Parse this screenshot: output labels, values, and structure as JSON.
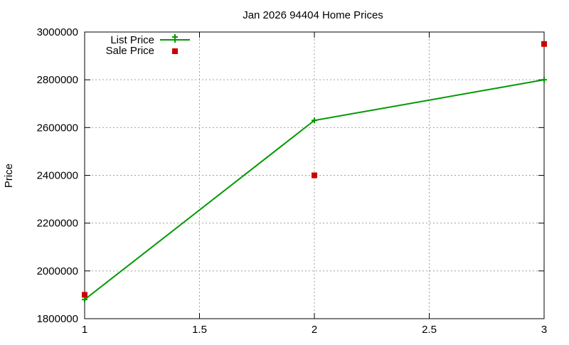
{
  "chart_data": {
    "type": "line",
    "title": "Jan 2026 94404 Home Prices",
    "xlabel": "",
    "ylabel": "Price",
    "xlim": [
      1,
      3
    ],
    "ylim": [
      1800000,
      3000000
    ],
    "x_ticks": [
      1,
      1.5,
      2,
      2.5,
      3
    ],
    "x_tick_labels": [
      "1",
      "1.5",
      "2",
      "2.5",
      "3"
    ],
    "y_ticks": [
      1800000,
      2000000,
      2200000,
      2400000,
      2600000,
      2800000,
      3000000
    ],
    "y_tick_labels": [
      "1800000",
      "2000000",
      "2200000",
      "2400000",
      "2600000",
      "2800000",
      "3000000"
    ],
    "grid": true,
    "legend_position": "top-left",
    "series": [
      {
        "name": "List Price",
        "style": "linespoints",
        "marker": "plus",
        "color": "#009900",
        "x": [
          1,
          2,
          3
        ],
        "y": [
          1880000,
          2630000,
          2800000
        ]
      },
      {
        "name": "Sale Price",
        "style": "points",
        "marker": "square",
        "color": "#cc0000",
        "x": [
          1,
          2,
          3
        ],
        "y": [
          1900000,
          2400000,
          2950000
        ]
      }
    ]
  }
}
